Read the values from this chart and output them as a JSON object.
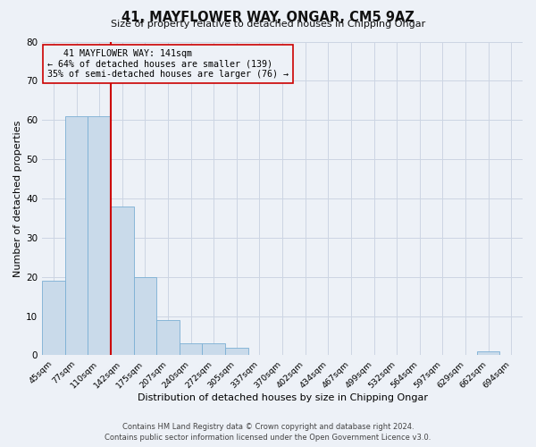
{
  "title": "41, MAYFLOWER WAY, ONGAR, CM5 9AZ",
  "subtitle": "Size of property relative to detached houses in Chipping Ongar",
  "xlabel": "Distribution of detached houses by size in Chipping Ongar",
  "ylabel": "Number of detached properties",
  "bin_labels": [
    "45sqm",
    "77sqm",
    "110sqm",
    "142sqm",
    "175sqm",
    "207sqm",
    "240sqm",
    "272sqm",
    "305sqm",
    "337sqm",
    "370sqm",
    "402sqm",
    "434sqm",
    "467sqm",
    "499sqm",
    "532sqm",
    "564sqm",
    "597sqm",
    "629sqm",
    "662sqm",
    "694sqm"
  ],
  "bar_heights": [
    19,
    61,
    61,
    38,
    20,
    9,
    3,
    3,
    2,
    0,
    0,
    0,
    0,
    0,
    0,
    0,
    0,
    0,
    0,
    1,
    0
  ],
  "bar_color": "#c9daea",
  "bar_edge_color": "#7bafd4",
  "property_line_index": 3,
  "property_line_color": "#cc0000",
  "annotation_line1": "   41 MAYFLOWER WAY: 141sqm",
  "annotation_line2": "← 64% of detached houses are smaller (139)",
  "annotation_line3": "35% of semi-detached houses are larger (76) →",
  "annotation_box_color": "#cc0000",
  "ylim": [
    0,
    80
  ],
  "yticks": [
    0,
    10,
    20,
    30,
    40,
    50,
    60,
    70,
    80
  ],
  "grid_color": "#ccd5e3",
  "bg_color": "#edf1f7",
  "footer_line1": "Contains HM Land Registry data © Crown copyright and database right 2024.",
  "footer_line2": "Contains public sector information licensed under the Open Government Licence v3.0."
}
